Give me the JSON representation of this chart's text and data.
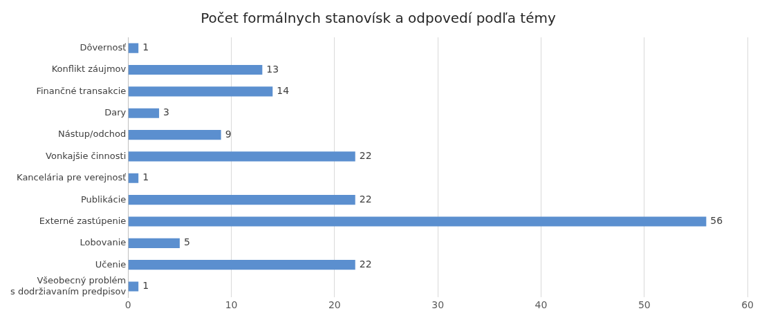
{
  "chart_data": {
    "type": "bar",
    "orientation": "horizontal",
    "title": "Počet formálnych stanovísk a odpovedí podľa témy",
    "categories": [
      "Dôvernosť",
      "Konflikt záujmov",
      "Finančné transakcie",
      "Dary",
      "Nástup/odchod",
      "Vonkajšie činnosti",
      "Kancelária pre verejnosť",
      "Publikácie",
      "Externé zastúpenie",
      "Lobovanie",
      "Učenie",
      "Všeobecný problém\ns dodržiavaním predpisov"
    ],
    "values": [
      1,
      13,
      14,
      3,
      9,
      22,
      1,
      22,
      56,
      5,
      22,
      1
    ],
    "color": "#5b8fcf",
    "xlim": [
      0,
      60
    ],
    "xticks": [
      0,
      10,
      20,
      30,
      40,
      50,
      60
    ],
    "grid": "x",
    "legend": false,
    "data_labels": true
  }
}
